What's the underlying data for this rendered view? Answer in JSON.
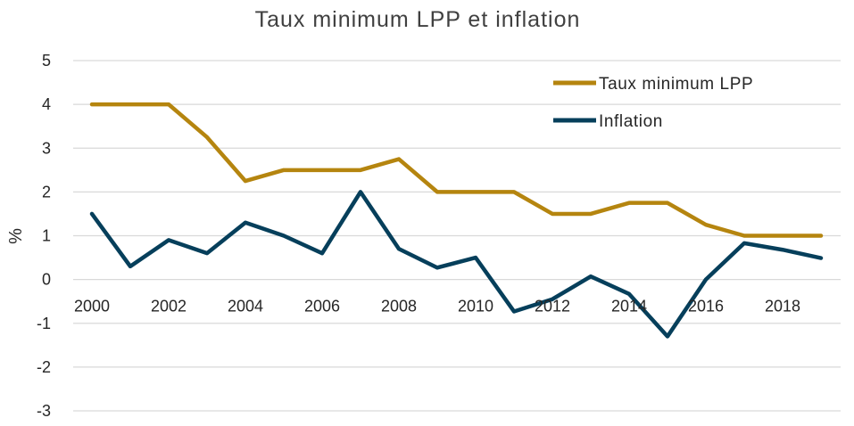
{
  "chart_data": {
    "type": "line",
    "title": "Taux minimum LPP et inflation",
    "xlabel": "",
    "ylabel": "%",
    "x": [
      2000,
      2001,
      2002,
      2003,
      2004,
      2005,
      2006,
      2007,
      2008,
      2009,
      2010,
      2011,
      2012,
      2013,
      2014,
      2015,
      2016,
      2017,
      2018,
      2019
    ],
    "xticks": [
      2000,
      2002,
      2004,
      2006,
      2008,
      2010,
      2012,
      2014,
      2016,
      2018
    ],
    "xtick_labels": [
      "2000",
      "2002",
      "2004",
      "2006",
      "2008",
      "2010",
      "2012",
      "2014",
      "2016",
      "2018"
    ],
    "ylim": [
      -3,
      5
    ],
    "yticks": [
      -3,
      -2,
      -1,
      0,
      1,
      2,
      3,
      4,
      5
    ],
    "ytick_labels": [
      "-3",
      "-2",
      "-1",
      "0",
      "1",
      "2",
      "3",
      "4",
      "5"
    ],
    "grid": true,
    "legend_position": "top-right",
    "series": [
      {
        "name": "Taux minimum LPP",
        "color": "#b5850f",
        "values": [
          4,
          4,
          4,
          3.25,
          2.25,
          2.5,
          2.5,
          2.5,
          2.75,
          2,
          2,
          2,
          1.5,
          1.5,
          1.75,
          1.75,
          1.25,
          1,
          1,
          1
        ]
      },
      {
        "name": "Inflation",
        "color": "#063f5b",
        "values": [
          1.5,
          0.3,
          0.9,
          0.6,
          1.3,
          1.0,
          0.6,
          2.0,
          0.7,
          0.27,
          0.5,
          -0.73,
          -0.45,
          0.07,
          -0.33,
          -1.3,
          0.0,
          0.83,
          0.68,
          0.49
        ]
      }
    ]
  }
}
